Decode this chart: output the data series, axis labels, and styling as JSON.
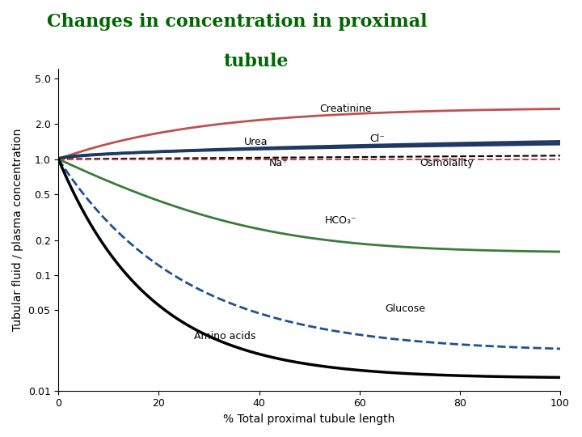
{
  "title_line1": "Changes in concentration in proximal",
  "title_line2": "tubule",
  "title_color": "#006600",
  "xlabel": "% Total proximal tubule length",
  "ylabel": "Tubular fluid / plasma concentration",
  "xlim": [
    0,
    100
  ],
  "ylim_log": [
    0.01,
    6.0
  ],
  "yticks": [
    0.01,
    0.05,
    0.1,
    0.2,
    0.5,
    1.0,
    2.0,
    5.0
  ],
  "ytick_labels": [
    "0.01",
    "0.05",
    "0.1",
    "0.2",
    "0.5",
    "1.0",
    "2.0",
    "5.0"
  ],
  "xticks": [
    0,
    20,
    40,
    60,
    80,
    100
  ],
  "background_color": "#ffffff"
}
